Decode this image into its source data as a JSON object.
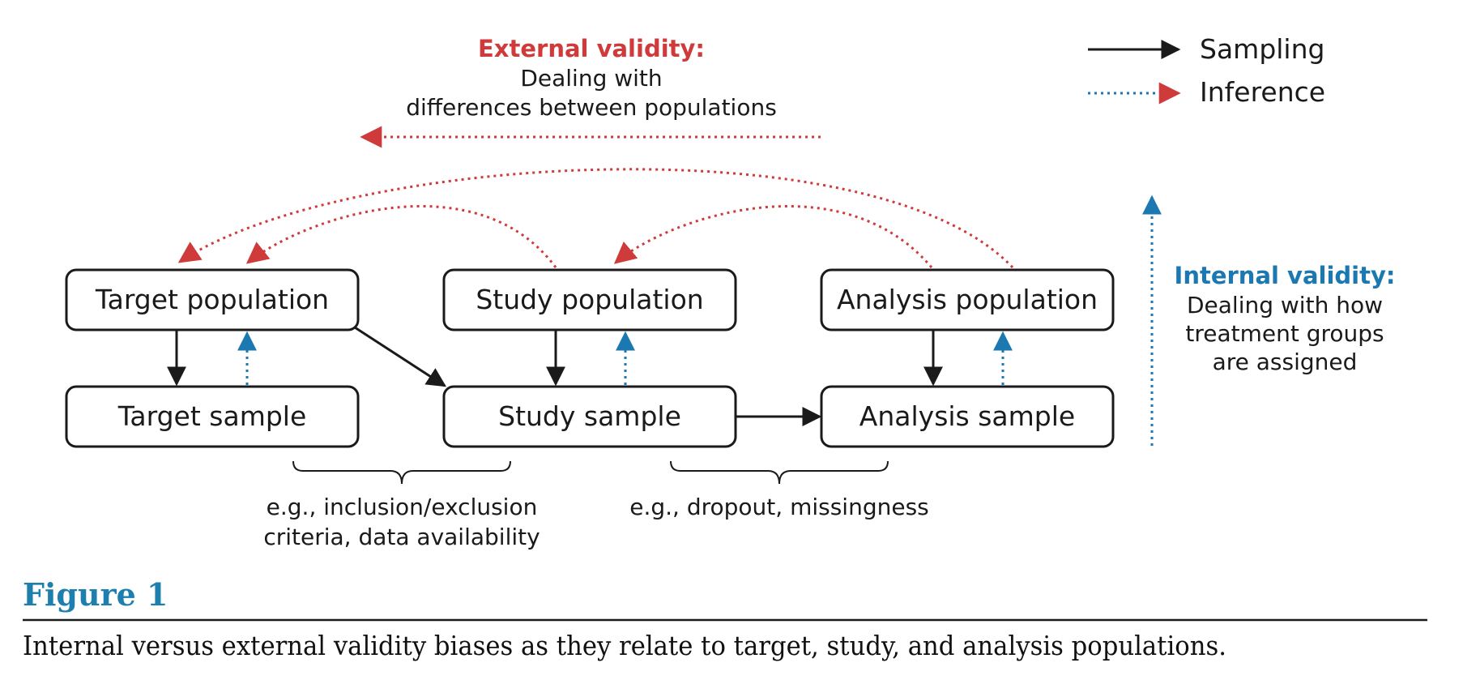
{
  "legend": {
    "sampling_label": "Sampling",
    "inference_label": "Inference"
  },
  "external_validity": {
    "title": "External validity:",
    "line1": "Dealing with",
    "line2": "differences between populations"
  },
  "internal_validity": {
    "title": "Internal validity:",
    "line1": "Dealing with how",
    "line2": "treatment groups",
    "line3": "are assigned"
  },
  "boxes": {
    "target_population": "Target population",
    "study_population": "Study population",
    "analysis_population": "Analysis population",
    "target_sample": "Target sample",
    "study_sample": "Study sample",
    "analysis_sample": "Analysis sample"
  },
  "notes": {
    "inclusion_line1": "e.g., inclusion/exclusion",
    "inclusion_line2": "criteria, data availability",
    "dropout": "e.g., dropout, missingness"
  },
  "figure": {
    "title": "Figure 1",
    "caption": "Internal versus external validity biases as they relate to target, study, and analysis populations."
  },
  "colors": {
    "sampling": "#1a1a1a",
    "inference_internal": "#1c78b0",
    "inference_external": "#cf3a3a",
    "figure_title": "#1c7fae"
  }
}
